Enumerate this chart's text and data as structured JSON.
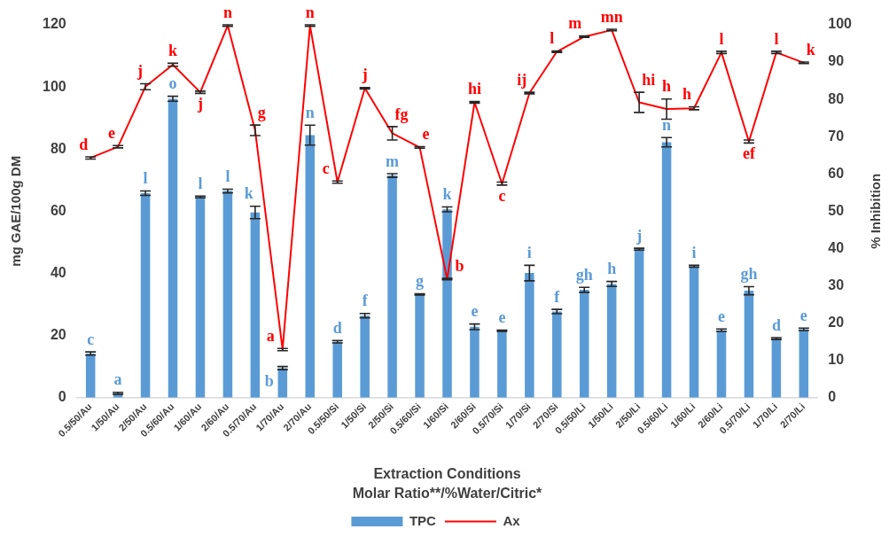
{
  "chart_data": {
    "type": "bar",
    "xlabel": "Extraction Conditions\nMolar Ratio**/%Water/Citric*",
    "ylabel": "mg GAE/100g DM",
    "y2label": "% Inhibition",
    "categories": [
      "0.5/50/Au",
      "1/50/Au",
      "2/50/Au",
      "0.5/60/Au",
      "1/60/Au",
      "2/60/Au",
      "0.5/70/Au",
      "1/70/Au",
      "2/70/Au",
      "0.5/50/Si",
      "1/50/Si",
      "2/50/Si",
      "0.5/60/Si",
      "1/60/Si",
      "2/60/Si",
      "0.5/70/Si",
      "1/70/Si",
      "2/70/Si",
      "0.5/50/Li",
      "1/50/Li",
      "2/50/Li",
      "0.5/60/Li",
      "1/60/Li",
      "2/60/Li",
      "0.5/70/Li",
      "1/70/Li",
      "2/70/Li"
    ],
    "ylim": [
      0,
      120
    ],
    "yticks": [
      0,
      20,
      40,
      60,
      80,
      100,
      120
    ],
    "y2lim": [
      0,
      100
    ],
    "y2ticks": [
      0,
      10,
      20,
      30,
      40,
      50,
      60,
      70,
      80,
      90,
      100
    ],
    "legend": "bottom",
    "series": [
      {
        "name": "TPC",
        "color": "#5b9bd5",
        "values": [
          14.2,
          1.4,
          65.8,
          96.2,
          64.6,
          66.5,
          59.6,
          9.5,
          84.5,
          18.0,
          26.4,
          71.5,
          33.2,
          60.6,
          22.8,
          21.5,
          40.1,
          27.7,
          34.7,
          36.6,
          47.8,
          82.2,
          42.3,
          21.7,
          34.4,
          19.0,
          22.0
        ],
        "errors": [
          0.5,
          0.3,
          0.7,
          0.8,
          0.3,
          0.6,
          2.0,
          0.5,
          3.2,
          0.4,
          0.7,
          0.6,
          0.2,
          0.8,
          0.9,
          0.2,
          2.5,
          0.7,
          0.8,
          0.8,
          0.3,
          1.5,
          0.3,
          0.4,
          1.3,
          0.3,
          0.4
        ],
        "value_labels": [
          "c",
          "a",
          "l",
          "o",
          "l",
          "l",
          "k",
          "b",
          "n",
          "d",
          "f",
          "m",
          "g",
          "k",
          "e",
          "e",
          "i",
          "f",
          "gh",
          "h",
          "j",
          "n",
          "i",
          "e",
          "gh",
          "d",
          "e"
        ]
      },
      {
        "name": "Ax",
        "type": "line",
        "axis": "y2",
        "color": "#ff0000",
        "marker": "none",
        "line_style": "solid",
        "values": [
          64.3,
          67.3,
          83.4,
          89.3,
          81.9,
          99.8,
          71.7,
          12.9,
          99.8,
          57.8,
          83.0,
          70.9,
          67.1,
          31.8,
          79.2,
          57.4,
          81.7,
          92.8,
          96.8,
          98.6,
          79.2,
          77.4,
          77.6,
          92.6,
          68.7,
          92.6,
          89.8
        ],
        "errors": [
          0.3,
          0.3,
          0.8,
          0.4,
          0.3,
          0.2,
          1.4,
          0.3,
          0.2,
          0.3,
          0.2,
          1.8,
          0.2,
          0.2,
          0.2,
          0.4,
          0.2,
          0.2,
          0.2,
          0.2,
          2.7,
          2.7,
          0.4,
          0.3,
          0.4,
          0.3,
          0.2
        ],
        "value_labels": [
          "d",
          "e",
          "j",
          "k",
          "j",
          "n",
          "g",
          "a",
          "n",
          "c",
          "j",
          "fg",
          "e",
          "b",
          "hi",
          "c",
          "ij",
          "l",
          "m",
          "mn",
          "hi",
          "h",
          "h",
          "l",
          "ef",
          "l",
          "k"
        ]
      }
    ]
  }
}
